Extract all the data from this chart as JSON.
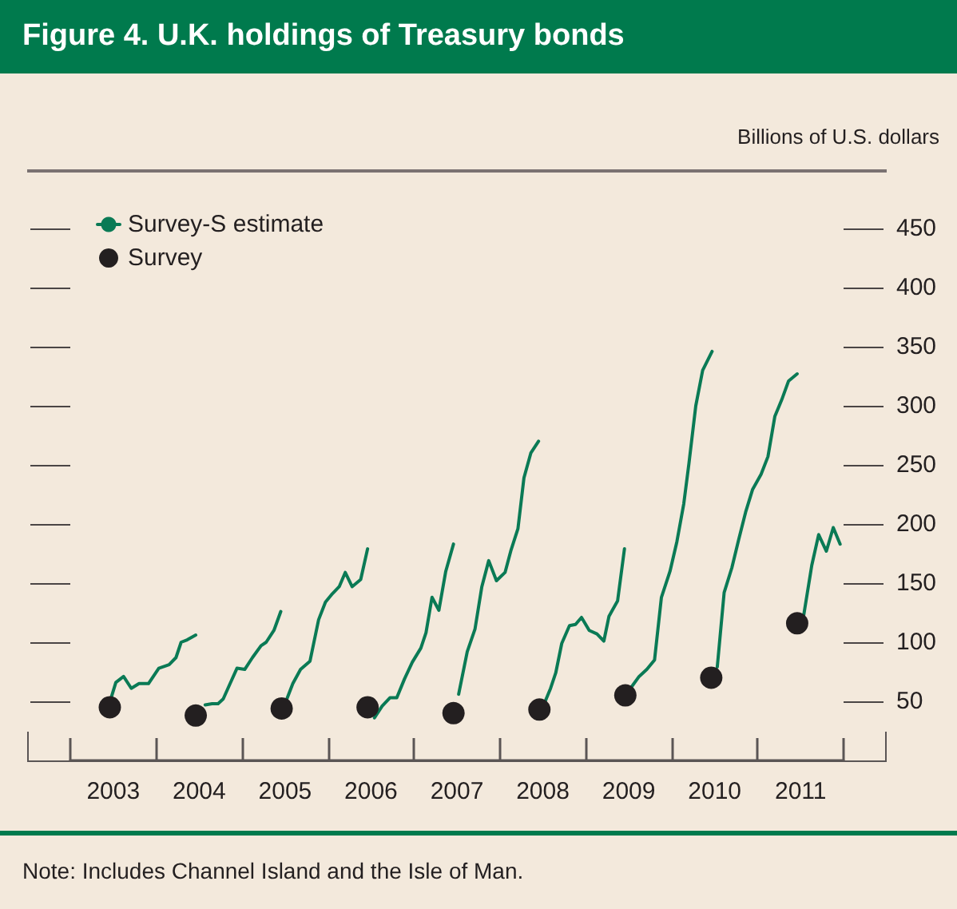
{
  "chart_data": {
    "type": "line",
    "title": "Figure 4. U.K. holdings of Treasury bonds",
    "ylabel": "Billions of U.S. dollars",
    "annotations": [
      "Note: Includes Channel Island and the Isle of Man."
    ],
    "xlim": [
      2003,
      2012
    ],
    "xticks": [
      {
        "value": 2003,
        "label": null
      },
      {
        "value": 2004,
        "label": null
      },
      {
        "value": 2005,
        "label": null
      },
      {
        "value": 2006,
        "label": null
      },
      {
        "value": 2007,
        "label": null
      },
      {
        "value": 2008,
        "label": null
      },
      {
        "value": 2009,
        "label": null
      },
      {
        "value": 2010,
        "label": null
      },
      {
        "value": 2011,
        "label": null
      },
      {
        "value": 2012,
        "label": null
      },
      {
        "value": 2003.5,
        "label": "2003"
      },
      {
        "value": 2004.5,
        "label": "2004"
      },
      {
        "value": 2005.5,
        "label": "2005"
      },
      {
        "value": 2006.5,
        "label": "2006"
      },
      {
        "value": 2007.5,
        "label": "2007"
      },
      {
        "value": 2008.5,
        "label": "2008"
      },
      {
        "value": 2009.5,
        "label": "2009"
      },
      {
        "value": 2010.5,
        "label": "2010"
      },
      {
        "value": 2011.5,
        "label": "2011"
      }
    ],
    "ylim": [
      0,
      450
    ],
    "yticks": [
      50,
      100,
      150,
      200,
      250,
      300,
      350,
      400,
      450
    ],
    "grid": false,
    "legend": "top left",
    "series": [
      {
        "name": "Survey-S estimate",
        "type": "line",
        "color": "#0a7a55",
        "marker": "none",
        "x": [
          2003.48,
          2003.53,
          2003.62,
          2003.71,
          2003.8,
          2003.91,
          2004.03,
          2004.15,
          2004.23,
          2004.29,
          2004.36,
          2004.46,
          2004.5,
          2004.57,
          2004.65,
          2004.72,
          2004.78,
          2004.86,
          2004.94,
          2005.03,
          2005.12,
          2005.22,
          2005.28,
          2005.37,
          2005.45,
          2005.48,
          2005.51,
          2005.59,
          2005.68,
          2005.79,
          2005.89,
          2005.97,
          2006.05,
          2006.13,
          2006.2,
          2006.28,
          2006.38,
          2006.46,
          2006.5,
          2006.54,
          2006.63,
          2006.72,
          2006.8,
          2006.89,
          2006.98,
          2007.08,
          2007.14,
          2007.21,
          2007.29,
          2007.37,
          2007.46,
          2007.48,
          2007.52,
          2007.62,
          2007.71,
          2007.79,
          2007.87,
          2007.96,
          2008.06,
          2008.13,
          2008.21,
          2008.28,
          2008.36,
          2008.45,
          2008.48,
          2008.51,
          2008.59,
          2008.65,
          2008.72,
          2008.81,
          2008.88,
          2008.95,
          2009.04,
          2009.13,
          2009.21,
          2009.27,
          2009.37,
          2009.45,
          2009.48,
          2009.52,
          2009.62,
          2009.71,
          2009.8,
          2009.88,
          2009.98,
          2010.06,
          2010.14,
          2010.2,
          2010.28,
          2010.36,
          2010.47,
          2010.5,
          2010.53,
          2010.61,
          2010.7,
          2010.78,
          2010.86,
          2010.94,
          2011.04,
          2011.12,
          2011.2,
          2011.28,
          2011.36,
          2011.46,
          2011.5,
          2011.53,
          2011.63,
          2011.71,
          2011.8,
          2011.88,
          2011.96
        ],
        "values": [
          54,
          66,
          71,
          61,
          65,
          65,
          78,
          81,
          87,
          100,
          102,
          106,
          null,
          47,
          48,
          48,
          52,
          65,
          78,
          77,
          87,
          97,
          100,
          110,
          126,
          null,
          50,
          65,
          77,
          84,
          119,
          134,
          141,
          147,
          159,
          147,
          153,
          179,
          null,
          36,
          46,
          53,
          53,
          69,
          83,
          95,
          108,
          138,
          127,
          160,
          183,
          null,
          56,
          92,
          111,
          147,
          169,
          152,
          159,
          178,
          196,
          239,
          260,
          270,
          null,
          47,
          61,
          74,
          99,
          114,
          115,
          121,
          110,
          107,
          101,
          122,
          135,
          179,
          null,
          61,
          71,
          77,
          85,
          138,
          160,
          185,
          217,
          251,
          300,
          330,
          346,
          null,
          79,
          142,
          163,
          187,
          210,
          229,
          242,
          257,
          291,
          305,
          321,
          327,
          null,
          120,
          165,
          191,
          177,
          197,
          183
        ]
      },
      {
        "name": "Survey",
        "type": "scatter",
        "color": "#231f20",
        "marker": "circle",
        "x": [
          2003.46,
          2004.46,
          2005.46,
          2006.46,
          2007.46,
          2008.46,
          2009.46,
          2010.46,
          2011.46
        ],
        "values": [
          45,
          38,
          44,
          45,
          40,
          43,
          55,
          70,
          116
        ]
      }
    ]
  }
}
